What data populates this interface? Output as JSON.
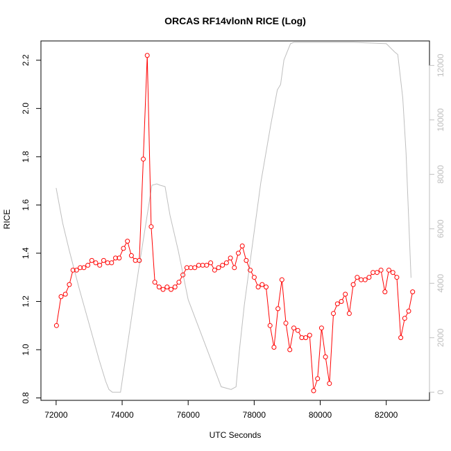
{
  "chart_data": {
    "type": "line",
    "title": "ORCAS RF14vlonN RICE (Log)",
    "xlabel": "UTC Seconds",
    "ylabel": "RICE",
    "xlim": [
      71540,
      83310
    ],
    "ylim": [
      0.79,
      2.28
    ],
    "y2lim": [
      -300,
      12900
    ],
    "x_ticks": [
      72000,
      74000,
      76000,
      78000,
      80000,
      82000
    ],
    "y_ticks": [
      0.8,
      1.0,
      1.2,
      1.4,
      1.6,
      1.8,
      2.0,
      2.2
    ],
    "y2_ticks": [
      0,
      2000,
      4000,
      6000,
      8000,
      10000,
      12000
    ],
    "grid": false,
    "legend": "none",
    "colors": {
      "rice": "#ff0000",
      "altitude": "#bebebe",
      "axes": "#000000"
    },
    "series": [
      {
        "axis": "left",
        "style": "line-with-open-circles",
        "color": "#ff0000",
        "x": [
          72010,
          72150,
          72280,
          72400,
          72510,
          72620,
          72730,
          72840,
          72960,
          73080,
          73200,
          73320,
          73440,
          73560,
          73680,
          73800,
          73910,
          74040,
          74160,
          74280,
          74400,
          74520,
          74640,
          74760,
          74880,
          74990,
          75120,
          75240,
          75360,
          75480,
          75600,
          75720,
          75840,
          75960,
          76080,
          76200,
          76320,
          76440,
          76560,
          76680,
          76800,
          76920,
          77040,
          77160,
          77280,
          77400,
          77520,
          77640,
          77760,
          77880,
          78000,
          78120,
          78240,
          78360,
          78480,
          78600,
          78720,
          78840,
          78960,
          79080,
          79200,
          79320,
          79440,
          79560,
          79680,
          79800,
          79920,
          80040,
          80160,
          80280,
          80400,
          80520,
          80640,
          80760,
          80880,
          81000,
          81120,
          81240,
          81360,
          81480,
          81600,
          81720,
          81840,
          81960,
          82080,
          82200,
          82320,
          82440,
          82560,
          82680,
          82800
        ],
        "values": [
          1.1,
          1.22,
          1.23,
          1.27,
          1.33,
          1.33,
          1.34,
          1.34,
          1.35,
          1.37,
          1.36,
          1.35,
          1.37,
          1.36,
          1.36,
          1.38,
          1.38,
          1.42,
          1.45,
          1.39,
          1.37,
          1.37,
          1.79,
          2.22,
          1.51,
          1.28,
          1.26,
          1.25,
          1.26,
          1.25,
          1.26,
          1.28,
          1.31,
          1.34,
          1.34,
          1.34,
          1.35,
          1.35,
          1.35,
          1.36,
          1.33,
          1.34,
          1.35,
          1.36,
          1.38,
          1.34,
          1.4,
          1.43,
          1.37,
          1.33,
          1.3,
          1.26,
          1.27,
          1.26,
          1.1,
          1.01,
          1.17,
          1.29,
          1.11,
          1.0,
          1.09,
          1.08,
          1.05,
          1.05,
          1.06,
          0.83,
          0.88,
          1.09,
          0.97,
          0.86,
          1.15,
          1.19,
          1.2,
          1.23,
          1.15,
          1.27,
          1.3,
          1.29,
          1.29,
          1.3,
          1.32,
          1.32,
          1.33,
          1.24,
          1.33,
          1.32,
          1.3,
          1.05,
          1.13,
          1.16,
          1.24
        ]
      },
      {
        "axis": "right",
        "style": "line",
        "color": "#bebebe",
        "x": [
          72000,
          72200,
          72400,
          72700,
          73000,
          73300,
          73500,
          73600,
          73700,
          73950,
          74500,
          74900,
          75050,
          75150,
          75300,
          75450,
          75700,
          76000,
          76500,
          77000,
          77300,
          77450,
          77550,
          77700,
          77900,
          78200,
          78500,
          78700,
          78800,
          78900,
          79000,
          79100,
          79200,
          79300,
          80000,
          81000,
          82000,
          82250,
          82350,
          82500,
          82600,
          82750
        ],
        "values": [
          7500,
          6200,
          5200,
          3800,
          2500,
          1200,
          400,
          100,
          0,
          0,
          4500,
          7600,
          7650,
          7600,
          7550,
          6500,
          5200,
          3400,
          1800,
          200,
          100,
          200,
          1500,
          3200,
          5000,
          7700,
          9800,
          11100,
          11300,
          12200,
          12500,
          12800,
          12850,
          12850,
          12850,
          12850,
          12800,
          12500,
          12400,
          10800,
          8800,
          4200
        ]
      }
    ]
  }
}
